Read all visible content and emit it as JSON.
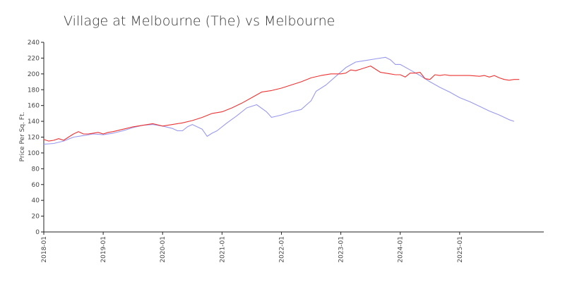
{
  "chart_data": {
    "type": "line",
    "title": "Village at Melbourne (The) vs Melbourne",
    "xlabel": "",
    "ylabel": "Price Per Sq. Ft.",
    "ylim": [
      0,
      240
    ],
    "yticks": [
      0,
      20,
      40,
      60,
      80,
      100,
      120,
      140,
      160,
      180,
      200,
      220,
      240
    ],
    "xlim": [
      "2018-01",
      "2026-06"
    ],
    "xticks": [
      "2018-01",
      "2019-01",
      "2020-01",
      "2021-01",
      "2022-01",
      "2023-01",
      "2024-01",
      "2025-01"
    ],
    "grid": false,
    "legend": "none",
    "series": [
      {
        "color": "#9999ee",
        "points": [
          [
            "2018-01",
            111
          ],
          [
            "2018-03",
            112
          ],
          [
            "2018-05",
            115
          ],
          [
            "2018-07",
            120
          ],
          [
            "2018-09",
            122
          ],
          [
            "2018-11",
            124
          ],
          [
            "2019-01",
            123
          ],
          [
            "2019-03",
            125
          ],
          [
            "2019-05",
            128
          ],
          [
            "2019-07",
            132
          ],
          [
            "2019-09",
            135
          ],
          [
            "2019-11",
            136
          ],
          [
            "2020-01",
            134
          ],
          [
            "2020-03",
            131
          ],
          [
            "2020-04",
            128
          ],
          [
            "2020-05",
            128
          ],
          [
            "2020-06",
            133
          ],
          [
            "2020-07",
            136
          ],
          [
            "2020-09",
            130
          ],
          [
            "2020-10",
            121
          ],
          [
            "2020-11",
            125
          ],
          [
            "2020-12",
            128
          ],
          [
            "2021-02",
            138
          ],
          [
            "2021-04",
            147
          ],
          [
            "2021-06",
            157
          ],
          [
            "2021-08",
            161
          ],
          [
            "2021-10",
            152
          ],
          [
            "2021-11",
            145
          ],
          [
            "2022-01",
            148
          ],
          [
            "2022-03",
            152
          ],
          [
            "2022-05",
            155
          ],
          [
            "2022-07",
            166
          ],
          [
            "2022-08",
            178
          ],
          [
            "2022-10",
            186
          ],
          [
            "2022-12",
            197
          ],
          [
            "2023-02",
            208
          ],
          [
            "2023-04",
            215
          ],
          [
            "2023-06",
            217
          ],
          [
            "2023-08",
            219
          ],
          [
            "2023-10",
            221
          ],
          [
            "2023-11",
            218
          ],
          [
            "2023-12",
            212
          ],
          [
            "2024-01",
            212
          ],
          [
            "2024-03",
            205
          ],
          [
            "2024-05",
            198
          ],
          [
            "2024-07",
            190
          ],
          [
            "2024-09",
            183
          ],
          [
            "2024-11",
            177
          ],
          [
            "2025-01",
            170
          ],
          [
            "2025-03",
            165
          ],
          [
            "2025-05",
            159
          ],
          [
            "2025-07",
            153
          ],
          [
            "2025-09",
            148
          ],
          [
            "2025-11",
            142
          ],
          [
            "2025-12",
            140
          ]
        ]
      },
      {
        "color": "#ee3333",
        "points": [
          [
            "2018-01",
            117
          ],
          [
            "2018-02",
            115
          ],
          [
            "2018-03",
            116
          ],
          [
            "2018-04",
            118
          ],
          [
            "2018-05",
            116
          ],
          [
            "2018-06",
            120
          ],
          [
            "2018-07",
            124
          ],
          [
            "2018-08",
            127
          ],
          [
            "2018-09",
            124
          ],
          [
            "2018-10",
            124
          ],
          [
            "2018-11",
            125
          ],
          [
            "2018-12",
            126
          ],
          [
            "2019-01",
            124
          ],
          [
            "2019-02",
            126
          ],
          [
            "2019-03",
            127
          ],
          [
            "2019-05",
            130
          ],
          [
            "2019-07",
            133
          ],
          [
            "2019-09",
            135
          ],
          [
            "2019-11",
            137
          ],
          [
            "2020-01",
            134
          ],
          [
            "2020-03",
            136
          ],
          [
            "2020-05",
            138
          ],
          [
            "2020-07",
            141
          ],
          [
            "2020-09",
            145
          ],
          [
            "2020-11",
            150
          ],
          [
            "2021-01",
            152
          ],
          [
            "2021-03",
            157
          ],
          [
            "2021-05",
            163
          ],
          [
            "2021-07",
            170
          ],
          [
            "2021-09",
            177
          ],
          [
            "2021-11",
            179
          ],
          [
            "2022-01",
            182
          ],
          [
            "2022-03",
            186
          ],
          [
            "2022-05",
            190
          ],
          [
            "2022-07",
            195
          ],
          [
            "2022-09",
            198
          ],
          [
            "2022-11",
            200
          ],
          [
            "2023-01",
            200
          ],
          [
            "2023-02",
            201
          ],
          [
            "2023-03",
            205
          ],
          [
            "2023-04",
            204
          ],
          [
            "2023-05",
            206
          ],
          [
            "2023-06",
            208
          ],
          [
            "2023-07",
            210
          ],
          [
            "2023-08",
            206
          ],
          [
            "2023-09",
            202
          ],
          [
            "2023-11",
            200
          ],
          [
            "2023-12",
            199
          ],
          [
            "2024-01",
            199
          ],
          [
            "2024-02",
            196
          ],
          [
            "2024-03",
            201
          ],
          [
            "2024-04",
            201
          ],
          [
            "2024-05",
            202
          ],
          [
            "2024-06",
            194
          ],
          [
            "2024-07",
            193
          ],
          [
            "2024-08",
            199
          ],
          [
            "2024-09",
            198
          ],
          [
            "2024-10",
            199
          ],
          [
            "2024-11",
            198
          ],
          [
            "2025-01",
            198
          ],
          [
            "2025-03",
            198
          ],
          [
            "2025-05",
            197
          ],
          [
            "2025-06",
            198
          ],
          [
            "2025-07",
            196
          ],
          [
            "2025-08",
            198
          ],
          [
            "2025-09",
            195
          ],
          [
            "2025-10",
            193
          ],
          [
            "2025-11",
            192
          ],
          [
            "2025-12",
            193
          ],
          [
            "2026-01",
            193
          ]
        ]
      }
    ]
  }
}
